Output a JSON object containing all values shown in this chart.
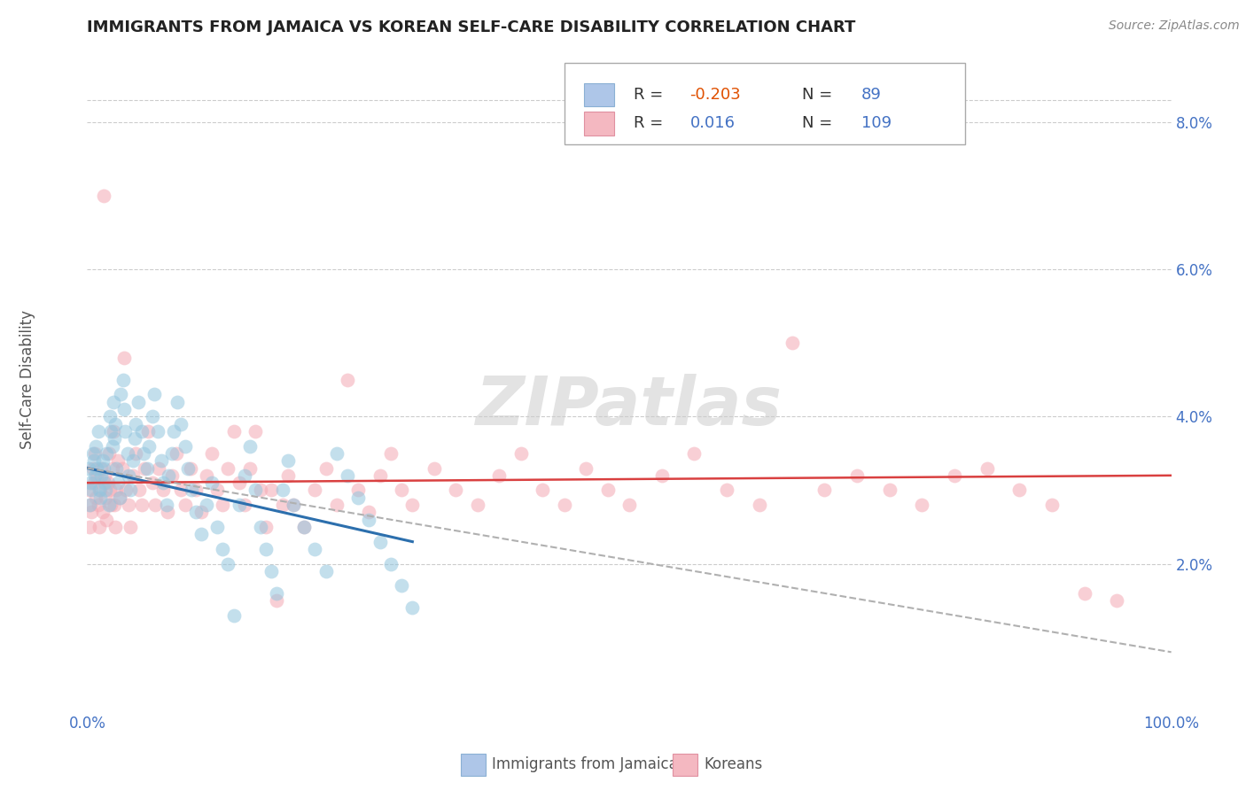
{
  "title": "IMMIGRANTS FROM JAMAICA VS KOREAN SELF-CARE DISABILITY CORRELATION CHART",
  "source": "Source: ZipAtlas.com",
  "ylabel": "Self-Care Disability",
  "xlim": [
    0.0,
    1.0
  ],
  "ylim": [
    0.0,
    0.088
  ],
  "xtick_positions": [
    0.0,
    1.0
  ],
  "xtick_labels": [
    "0.0%",
    "100.0%"
  ],
  "ytick_values": [
    0.02,
    0.04,
    0.06,
    0.08
  ],
  "ytick_labels": [
    "2.0%",
    "4.0%",
    "6.0%",
    "8.0%"
  ],
  "legend_r_blue": "-0.203",
  "legend_n_blue": "89",
  "legend_r_pink": "0.016",
  "legend_n_pink": "109",
  "legend_label_blue": "Immigrants from Jamaica",
  "legend_label_pink": "Koreans",
  "blue_color": "#92c5de",
  "pink_color": "#f4a9b4",
  "trendline_blue_color": "#2c6fad",
  "trendline_pink_color": "#d94040",
  "trendline_dashed_color": "#b0b0b0",
  "background_color": "#ffffff",
  "grid_color": "#cccccc",
  "watermark": "ZIPatlas",
  "blue_trendline": [
    [
      0.0,
      0.033
    ],
    [
      0.3,
      0.023
    ]
  ],
  "pink_trendline": [
    [
      0.0,
      0.031
    ],
    [
      1.0,
      0.032
    ]
  ],
  "dashed_trendline": [
    [
      0.0,
      0.033
    ],
    [
      1.0,
      0.008
    ]
  ],
  "blue_points": [
    [
      0.001,
      0.033
    ],
    [
      0.002,
      0.028
    ],
    [
      0.003,
      0.031
    ],
    [
      0.004,
      0.03
    ],
    [
      0.005,
      0.035
    ],
    [
      0.006,
      0.034
    ],
    [
      0.007,
      0.032
    ],
    [
      0.008,
      0.036
    ],
    [
      0.009,
      0.033
    ],
    [
      0.01,
      0.038
    ],
    [
      0.011,
      0.03
    ],
    [
      0.012,
      0.029
    ],
    [
      0.013,
      0.032
    ],
    [
      0.014,
      0.034
    ],
    [
      0.015,
      0.033
    ],
    [
      0.016,
      0.031
    ],
    [
      0.017,
      0.03
    ],
    [
      0.018,
      0.035
    ],
    [
      0.02,
      0.028
    ],
    [
      0.021,
      0.04
    ],
    [
      0.022,
      0.038
    ],
    [
      0.023,
      0.036
    ],
    [
      0.024,
      0.042
    ],
    [
      0.025,
      0.037
    ],
    [
      0.026,
      0.039
    ],
    [
      0.027,
      0.033
    ],
    [
      0.028,
      0.031
    ],
    [
      0.03,
      0.029
    ],
    [
      0.031,
      0.043
    ],
    [
      0.033,
      0.045
    ],
    [
      0.034,
      0.041
    ],
    [
      0.035,
      0.038
    ],
    [
      0.037,
      0.035
    ],
    [
      0.038,
      0.032
    ],
    [
      0.04,
      0.03
    ],
    [
      0.042,
      0.034
    ],
    [
      0.044,
      0.037
    ],
    [
      0.045,
      0.039
    ],
    [
      0.047,
      0.042
    ],
    [
      0.05,
      0.038
    ],
    [
      0.052,
      0.035
    ],
    [
      0.055,
      0.033
    ],
    [
      0.057,
      0.036
    ],
    [
      0.06,
      0.04
    ],
    [
      0.062,
      0.043
    ],
    [
      0.065,
      0.038
    ],
    [
      0.068,
      0.034
    ],
    [
      0.07,
      0.031
    ],
    [
      0.073,
      0.028
    ],
    [
      0.075,
      0.032
    ],
    [
      0.078,
      0.035
    ],
    [
      0.08,
      0.038
    ],
    [
      0.083,
      0.042
    ],
    [
      0.086,
      0.039
    ],
    [
      0.09,
      0.036
    ],
    [
      0.093,
      0.033
    ],
    [
      0.096,
      0.03
    ],
    [
      0.1,
      0.027
    ],
    [
      0.105,
      0.024
    ],
    [
      0.11,
      0.028
    ],
    [
      0.115,
      0.031
    ],
    [
      0.12,
      0.025
    ],
    [
      0.125,
      0.022
    ],
    [
      0.13,
      0.02
    ],
    [
      0.135,
      0.013
    ],
    [
      0.14,
      0.028
    ],
    [
      0.145,
      0.032
    ],
    [
      0.15,
      0.036
    ],
    [
      0.155,
      0.03
    ],
    [
      0.16,
      0.025
    ],
    [
      0.165,
      0.022
    ],
    [
      0.17,
      0.019
    ],
    [
      0.175,
      0.016
    ],
    [
      0.18,
      0.03
    ],
    [
      0.185,
      0.034
    ],
    [
      0.19,
      0.028
    ],
    [
      0.2,
      0.025
    ],
    [
      0.21,
      0.022
    ],
    [
      0.22,
      0.019
    ],
    [
      0.23,
      0.035
    ],
    [
      0.24,
      0.032
    ],
    [
      0.25,
      0.029
    ],
    [
      0.26,
      0.026
    ],
    [
      0.27,
      0.023
    ],
    [
      0.28,
      0.02
    ],
    [
      0.29,
      0.017
    ],
    [
      0.3,
      0.014
    ]
  ],
  "pink_points": [
    [
      0.001,
      0.03
    ],
    [
      0.002,
      0.025
    ],
    [
      0.003,
      0.028
    ],
    [
      0.004,
      0.027
    ],
    [
      0.005,
      0.033
    ],
    [
      0.006,
      0.031
    ],
    [
      0.007,
      0.035
    ],
    [
      0.008,
      0.029
    ],
    [
      0.009,
      0.032
    ],
    [
      0.01,
      0.028
    ],
    [
      0.011,
      0.025
    ],
    [
      0.012,
      0.03
    ],
    [
      0.013,
      0.033
    ],
    [
      0.014,
      0.027
    ],
    [
      0.015,
      0.07
    ],
    [
      0.016,
      0.032
    ],
    [
      0.017,
      0.029
    ],
    [
      0.018,
      0.026
    ],
    [
      0.019,
      0.031
    ],
    [
      0.02,
      0.035
    ],
    [
      0.021,
      0.03
    ],
    [
      0.022,
      0.028
    ],
    [
      0.023,
      0.033
    ],
    [
      0.024,
      0.038
    ],
    [
      0.025,
      0.028
    ],
    [
      0.026,
      0.025
    ],
    [
      0.027,
      0.03
    ],
    [
      0.028,
      0.034
    ],
    [
      0.03,
      0.029
    ],
    [
      0.032,
      0.033
    ],
    [
      0.034,
      0.048
    ],
    [
      0.036,
      0.03
    ],
    [
      0.038,
      0.028
    ],
    [
      0.04,
      0.025
    ],
    [
      0.042,
      0.032
    ],
    [
      0.045,
      0.035
    ],
    [
      0.048,
      0.03
    ],
    [
      0.05,
      0.028
    ],
    [
      0.053,
      0.033
    ],
    [
      0.056,
      0.038
    ],
    [
      0.06,
      0.031
    ],
    [
      0.063,
      0.028
    ],
    [
      0.066,
      0.033
    ],
    [
      0.07,
      0.03
    ],
    [
      0.074,
      0.027
    ],
    [
      0.078,
      0.032
    ],
    [
      0.082,
      0.035
    ],
    [
      0.086,
      0.03
    ],
    [
      0.09,
      0.028
    ],
    [
      0.095,
      0.033
    ],
    [
      0.1,
      0.03
    ],
    [
      0.105,
      0.027
    ],
    [
      0.11,
      0.032
    ],
    [
      0.115,
      0.035
    ],
    [
      0.12,
      0.03
    ],
    [
      0.125,
      0.028
    ],
    [
      0.13,
      0.033
    ],
    [
      0.135,
      0.038
    ],
    [
      0.14,
      0.031
    ],
    [
      0.145,
      0.028
    ],
    [
      0.15,
      0.033
    ],
    [
      0.155,
      0.038
    ],
    [
      0.16,
      0.03
    ],
    [
      0.165,
      0.025
    ],
    [
      0.17,
      0.03
    ],
    [
      0.175,
      0.015
    ],
    [
      0.18,
      0.028
    ],
    [
      0.185,
      0.032
    ],
    [
      0.19,
      0.028
    ],
    [
      0.2,
      0.025
    ],
    [
      0.21,
      0.03
    ],
    [
      0.22,
      0.033
    ],
    [
      0.23,
      0.028
    ],
    [
      0.24,
      0.045
    ],
    [
      0.25,
      0.03
    ],
    [
      0.26,
      0.027
    ],
    [
      0.27,
      0.032
    ],
    [
      0.28,
      0.035
    ],
    [
      0.29,
      0.03
    ],
    [
      0.3,
      0.028
    ],
    [
      0.32,
      0.033
    ],
    [
      0.34,
      0.03
    ],
    [
      0.36,
      0.028
    ],
    [
      0.38,
      0.032
    ],
    [
      0.4,
      0.035
    ],
    [
      0.42,
      0.03
    ],
    [
      0.44,
      0.028
    ],
    [
      0.46,
      0.033
    ],
    [
      0.48,
      0.03
    ],
    [
      0.5,
      0.028
    ],
    [
      0.53,
      0.032
    ],
    [
      0.56,
      0.035
    ],
    [
      0.59,
      0.03
    ],
    [
      0.62,
      0.028
    ],
    [
      0.65,
      0.05
    ],
    [
      0.68,
      0.03
    ],
    [
      0.71,
      0.032
    ],
    [
      0.74,
      0.03
    ],
    [
      0.77,
      0.028
    ],
    [
      0.8,
      0.032
    ],
    [
      0.83,
      0.033
    ],
    [
      0.86,
      0.03
    ],
    [
      0.89,
      0.028
    ],
    [
      0.92,
      0.016
    ],
    [
      0.95,
      0.015
    ]
  ]
}
